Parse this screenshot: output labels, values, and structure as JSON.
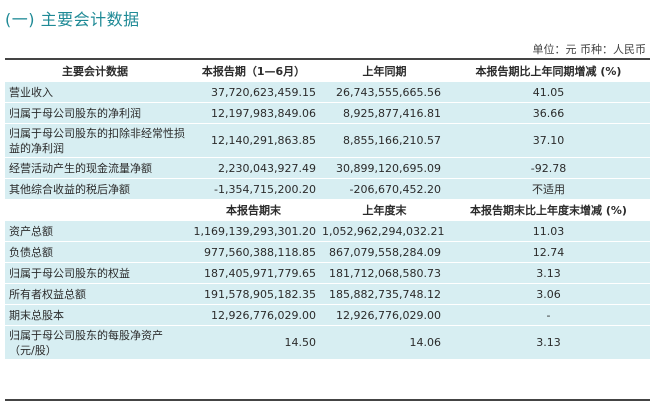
{
  "title": "(一) 主要会计数据",
  "unit_note": "单位：元  币种：人民币",
  "header1": [
    "主要会计数据",
    "本报告期（1—6月）",
    "上年同期",
    "本报告期比上年同期增减 (%)"
  ],
  "rows1": [
    [
      "营业收入",
      "37,720,623,459.15",
      "26,743,555,665.56",
      "41.05"
    ],
    [
      "归属于母公司股东的净利润",
      "12,197,983,849.06",
      "8,925,877,416.81",
      "36.66"
    ],
    [
      "归属于母公司股东的扣除非经常性损益的净利润",
      "12,140,291,863.85",
      "8,855,166,210.57",
      "37.10"
    ],
    [
      "经营活动产生的现金流量净额",
      "2,230,043,927.49",
      "30,899,120,695.09",
      "-92.78"
    ],
    [
      "其他综合收益的税后净额",
      "-1,354,715,200.20",
      "-206,670,452.20",
      "不适用"
    ]
  ],
  "header2": [
    "",
    "本报告期末",
    "上年度末",
    "本报告期末比上年度末增减 (%)"
  ],
  "rows2": [
    [
      "资产总额",
      "1,169,139,293,301.20",
      "1,052,962,294,032.21",
      "11.03"
    ],
    [
      "负债总额",
      "977,560,388,118.85",
      "867,079,558,284.09",
      "12.74"
    ],
    [
      "归属于母公司股东的权益",
      "187,405,971,779.65",
      "181,712,068,580.73",
      "3.13"
    ],
    [
      "所有者权益总额",
      "191,578,905,182.35",
      "185,882,735,748.12",
      "3.06"
    ],
    [
      "期末总股本",
      "12,926,776,029.00",
      "12,926,776,029.00",
      "-"
    ],
    [
      "归属于母公司股东的每股净资产（元/股）",
      "14.50",
      "14.06",
      "3.13"
    ]
  ]
}
